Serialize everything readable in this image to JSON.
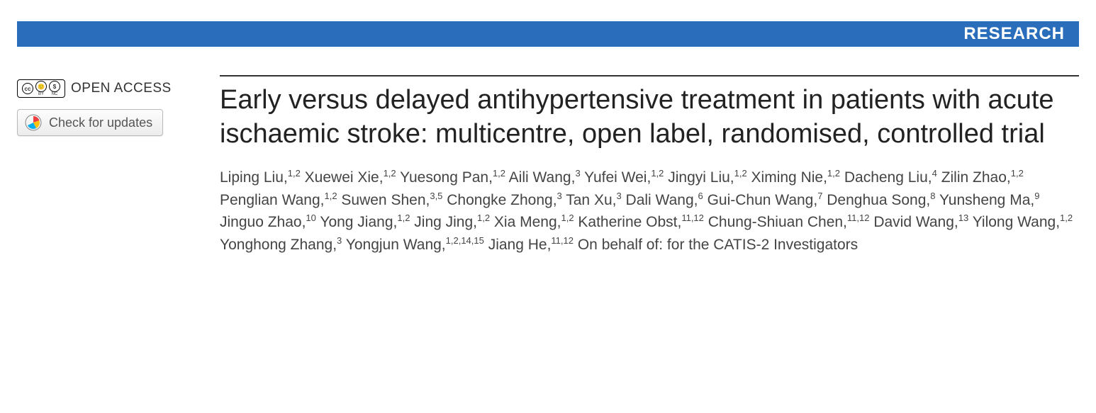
{
  "banner": {
    "label": "RESEARCH",
    "bg_color": "#2a6ebb",
    "text_color": "#ffffff"
  },
  "sidebar": {
    "open_access_label": "OPEN ACCESS",
    "open_access_color": "#333333",
    "cc_parts": [
      "CC",
      "BY",
      "NC"
    ],
    "updates_label": "Check for updates",
    "crossmark_colors": {
      "red": "#ef3e42",
      "yellow": "#ffc20e",
      "blue": "#00aeef"
    }
  },
  "article": {
    "title": "Early versus delayed antihypertensive treatment in patients with acute ischaemic stroke: multicentre, open label, randomised, controlled trial",
    "title_color": "#222222",
    "authors": [
      {
        "name": "Liping Liu",
        "aff": "1,2"
      },
      {
        "name": "Xuewei Xie",
        "aff": "1,2"
      },
      {
        "name": "Yuesong Pan",
        "aff": "1,2"
      },
      {
        "name": "Aili Wang",
        "aff": "3"
      },
      {
        "name": "Yufei Wei",
        "aff": "1,2"
      },
      {
        "name": "Jingyi Liu",
        "aff": "1,2"
      },
      {
        "name": "Ximing Nie",
        "aff": "1,2"
      },
      {
        "name": "Dacheng Liu",
        "aff": "4"
      },
      {
        "name": "Zilin Zhao",
        "aff": "1,2"
      },
      {
        "name": "Penglian Wang",
        "aff": "1,2"
      },
      {
        "name": "Suwen Shen",
        "aff": "3,5"
      },
      {
        "name": "Chongke Zhong",
        "aff": "3"
      },
      {
        "name": "Tan Xu",
        "aff": "3"
      },
      {
        "name": "Dali Wang",
        "aff": "6"
      },
      {
        "name": "Gui-Chun Wang",
        "aff": "7"
      },
      {
        "name": "Denghua Song",
        "aff": "8"
      },
      {
        "name": "Yunsheng Ma",
        "aff": "9"
      },
      {
        "name": "Jinguo Zhao",
        "aff": "10"
      },
      {
        "name": "Yong Jiang",
        "aff": "1,2"
      },
      {
        "name": "Jing Jing",
        "aff": "1,2"
      },
      {
        "name": "Xia Meng",
        "aff": "1,2"
      },
      {
        "name": "Katherine Obst",
        "aff": "11,12"
      },
      {
        "name": "Chung-Shiuan Chen",
        "aff": "11,12"
      },
      {
        "name": "David Wang",
        "aff": "13"
      },
      {
        "name": "Yilong Wang",
        "aff": "1,2"
      },
      {
        "name": "Yonghong Zhang",
        "aff": "3"
      },
      {
        "name": "Yongjun Wang",
        "aff": "1,2,14,15"
      },
      {
        "name": "Jiang He",
        "aff": "11,12"
      }
    ],
    "behalf": "On behalf of: for the CATIS-2 Investigators",
    "author_color": "#444444"
  }
}
